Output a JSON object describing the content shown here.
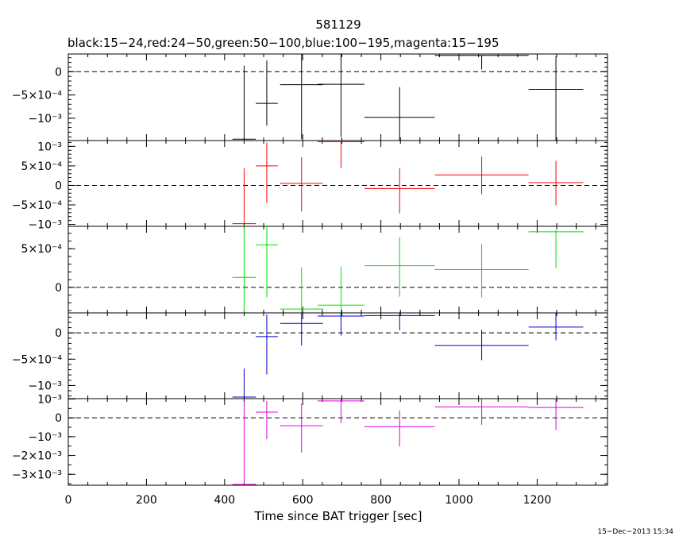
{
  "chart_data": {
    "type": "scatter",
    "title": "581129",
    "subtitle": "black:15−24,red:24−50,green:50−100,blue:100−195,magenta:15−195",
    "xlabel": "Time since BAT trigger [sec]",
    "xlim": [
      0,
      1380
    ],
    "x_tick_labels": [
      "0",
      "200",
      "400",
      "600",
      "800",
      "1000",
      "1200"
    ],
    "x_ticks": [
      0,
      200,
      400,
      600,
      800,
      1000,
      1200
    ],
    "timestamp": "15−Dec−2013 15:34",
    "panels": [
      {
        "color": "#000000",
        "ylim": [
          -0.00148,
          0.00038
        ],
        "yticks": [
          {
            "value": 0,
            "label": "0",
            "major": true
          },
          {
            "value": -0.0005,
            "label": "−5×10⁻⁴",
            "major": true
          },
          {
            "value": -0.001,
            "label": "−10⁻³",
            "major": true
          }
        ],
        "minor_step": 0.0001,
        "points": [
          {
            "x": 450,
            "xerr": 30,
            "y": -0.00145,
            "yerr_lo": 0,
            "yerr_hi": 0.00158
          },
          {
            "x": 508,
            "xerr": 28,
            "y": -0.00068,
            "yerr_lo": 0.00048,
            "yerr_hi": 0.00092
          },
          {
            "x": 597,
            "xerr": 55,
            "y": -0.00028,
            "yerr_lo": 0.00117,
            "yerr_hi": 0.00069
          },
          {
            "x": 698,
            "xerr": 60,
            "y": -0.00027,
            "yerr_lo": 0.00113,
            "yerr_hi": 0.00074
          },
          {
            "x": 848,
            "xerr": 90,
            "y": -0.00098,
            "yerr_lo": 0.0005,
            "yerr_hi": 0.00065
          },
          {
            "x": 1058,
            "xerr": 120,
            "y": 0.00035,
            "yerr_lo": 0.0003,
            "yerr_hi": 0.0
          },
          {
            "x": 1248,
            "xerr": 70,
            "y": -0.00038,
            "yerr_lo": 0.00112,
            "yerr_hi": 0.00071
          }
        ]
      },
      {
        "color": "#ff0000",
        "ylim": [
          -0.00105,
          0.00115
        ],
        "yticks": [
          {
            "value": 0.001,
            "label": "10⁻³",
            "major": true
          },
          {
            "value": 0.0005,
            "label": "5×10⁻⁴",
            "major": true
          },
          {
            "value": 0,
            "label": "0",
            "major": true
          },
          {
            "value": -0.0005,
            "label": "−5×10⁻⁴",
            "major": true
          },
          {
            "value": -0.001,
            "label": "−10⁻³",
            "major": true
          }
        ],
        "minor_step": 0.0001,
        "points": [
          {
            "x": 450,
            "xerr": 30,
            "y": -0.00098,
            "yerr_lo": 0,
            "yerr_hi": 0.00142
          },
          {
            "x": 508,
            "xerr": 28,
            "y": 0.0005,
            "yerr_lo": 0.00095,
            "yerr_hi": 0.0006
          },
          {
            "x": 597,
            "xerr": 55,
            "y": 5e-05,
            "yerr_lo": 0.00072,
            "yerr_hi": 0.00067
          },
          {
            "x": 698,
            "xerr": 60,
            "y": 0.00112,
            "yerr_lo": 0.00067,
            "yerr_hi": 0.0
          },
          {
            "x": 848,
            "xerr": 90,
            "y": -8e-05,
            "yerr_lo": 0.00064,
            "yerr_hi": 0.00052
          },
          {
            "x": 1058,
            "xerr": 120,
            "y": 0.00027,
            "yerr_lo": 0.0005,
            "yerr_hi": 0.00047
          },
          {
            "x": 1248,
            "xerr": 70,
            "y": 7e-05,
            "yerr_lo": 0.00058,
            "yerr_hi": 0.00056
          }
        ]
      },
      {
        "color": "#00e000",
        "ylim": [
          -0.00033,
          0.00079
        ],
        "yticks": [
          {
            "value": 0.0005,
            "label": "5×10⁻⁴",
            "major": true
          },
          {
            "value": 0,
            "label": "0",
            "major": true
          }
        ],
        "minor_step": 0.0001,
        "points": [
          {
            "x": 450,
            "xerr": 30,
            "y": 0.00013,
            "yerr_lo": 0.00046,
            "yerr_hi": 0.00066
          },
          {
            "x": 508,
            "xerr": 28,
            "y": 0.00055,
            "yerr_lo": 0.00068,
            "yerr_hi": 0.00024
          },
          {
            "x": 597,
            "xerr": 55,
            "y": -0.00028,
            "yerr_lo": 0.0001,
            "yerr_hi": 0.00054
          },
          {
            "x": 698,
            "xerr": 60,
            "y": -0.00023,
            "yerr_lo": 0.00015,
            "yerr_hi": 0.0005
          },
          {
            "x": 848,
            "xerr": 90,
            "y": 0.00028,
            "yerr_lo": 0.0004,
            "yerr_hi": 0.00037
          },
          {
            "x": 1058,
            "xerr": 120,
            "y": 0.00023,
            "yerr_lo": 0.00036,
            "yerr_hi": 0.00033
          },
          {
            "x": 1248,
            "xerr": 70,
            "y": 0.00072,
            "yerr_lo": 0.00047,
            "yerr_hi": 2e-05
          }
        ]
      },
      {
        "color": "#0000cc",
        "ylim": [
          -0.00125,
          0.00038
        ],
        "yticks": [
          {
            "value": 0,
            "label": "0",
            "major": true
          },
          {
            "value": -0.0005,
            "label": "−5×10⁻⁴",
            "major": true
          },
          {
            "value": -0.001,
            "label": "−10⁻³",
            "major": true
          }
        ],
        "minor_step": 0.0001,
        "points": [
          {
            "x": 450,
            "xerr": 30,
            "y": -0.00122,
            "yerr_lo": 0,
            "yerr_hi": 0.00054
          },
          {
            "x": 508,
            "xerr": 28,
            "y": -7e-05,
            "yerr_lo": 0.00072,
            "yerr_hi": 0.00042
          },
          {
            "x": 597,
            "xerr": 55,
            "y": 0.00018,
            "yerr_lo": 0.00042,
            "yerr_hi": 0.0002
          },
          {
            "x": 698,
            "xerr": 60,
            "y": 0.00032,
            "yerr_lo": 0.00037,
            "yerr_hi": 6e-05
          },
          {
            "x": 848,
            "xerr": 90,
            "y": 0.00033,
            "yerr_lo": 0.00028,
            "yerr_hi": 5e-05
          },
          {
            "x": 1058,
            "xerr": 120,
            "y": -0.00024,
            "yerr_lo": 0.00028,
            "yerr_hi": 0.0003
          },
          {
            "x": 1248,
            "xerr": 70,
            "y": 0.00011,
            "yerr_lo": 0.00025,
            "yerr_hi": 0.00027
          }
        ]
      },
      {
        "color": "#e000e0",
        "ylim": [
          -0.00358,
          0.00102
        ],
        "yticks": [
          {
            "value": 0.001,
            "label": "10⁻³",
            "major": true
          },
          {
            "value": 0,
            "label": "0",
            "major": true
          },
          {
            "value": -0.001,
            "label": "−10⁻³",
            "major": true
          },
          {
            "value": -0.002,
            "label": "−2×10⁻³",
            "major": true
          },
          {
            "value": -0.003,
            "label": "−3×10⁻³",
            "major": true
          }
        ],
        "minor_step": 0.0005,
        "points": [
          {
            "x": 450,
            "xerr": 30,
            "y": -0.00355,
            "yerr_lo": 0,
            "yerr_hi": 0.00442
          },
          {
            "x": 508,
            "xerr": 28,
            "y": 0.0003,
            "yerr_lo": 0.00143,
            "yerr_hi": 0.0006
          },
          {
            "x": 597,
            "xerr": 55,
            "y": -0.00042,
            "yerr_lo": 0.00143,
            "yerr_hi": 0.00117
          },
          {
            "x": 698,
            "xerr": 60,
            "y": 0.0009,
            "yerr_lo": 0.00118,
            "yerr_hi": 0.00012
          },
          {
            "x": 848,
            "xerr": 90,
            "y": -0.00047,
            "yerr_lo": 0.00105,
            "yerr_hi": 0.00087
          },
          {
            "x": 1058,
            "xerr": 120,
            "y": 0.00058,
            "yerr_lo": 0.00095,
            "yerr_hi": 0.00042
          },
          {
            "x": 1248,
            "xerr": 70,
            "y": 0.00055,
            "yerr_lo": 0.0012,
            "yerr_hi": 0.00047
          }
        ]
      }
    ]
  }
}
